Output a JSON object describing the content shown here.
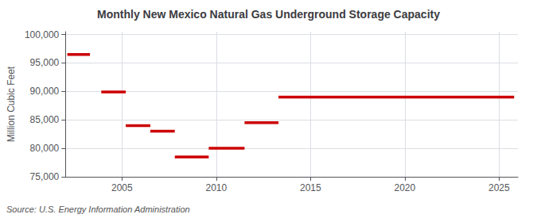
{
  "chart_data": {
    "type": "line",
    "title": "Monthly New Mexico Natural Gas Underground Storage Capacity",
    "ylabel": "Million Cubic Feet",
    "annotation": "Source: U.S. Energy Information Administration",
    "color": "#cc0000",
    "xlim": [
      2002.0,
      2026.0
    ],
    "xticks": [
      2005,
      2010,
      2015,
      2020,
      2025
    ],
    "ylim": [
      75000,
      100500
    ],
    "yticks": [
      {
        "value": 75000,
        "label": "75,000"
      },
      {
        "value": 80000,
        "label": "80,000"
      },
      {
        "value": 85000,
        "label": "85,000"
      },
      {
        "value": 90000,
        "label": "90,000"
      },
      {
        "value": 95000,
        "label": "95,000"
      },
      {
        "value": 100000,
        "label": "100,000"
      }
    ],
    "grid": true,
    "segments": [
      {
        "x_start": 2002.1,
        "x_end": 2003.3,
        "y": 96500
      },
      {
        "x_start": 2003.9,
        "x_end": 2005.2,
        "y": 89900
      },
      {
        "x_start": 2005.2,
        "x_end": 2006.5,
        "y": 84000
      },
      {
        "x_start": 2006.5,
        "x_end": 2007.8,
        "y": 83000
      },
      {
        "x_start": 2007.8,
        "x_end": 2009.6,
        "y": 78500
      },
      {
        "x_start": 2009.6,
        "x_end": 2011.5,
        "y": 80000
      },
      {
        "x_start": 2011.5,
        "x_end": 2013.3,
        "y": 84500
      },
      {
        "x_start": 2013.3,
        "x_end": 2025.8,
        "y": 89000
      }
    ]
  }
}
